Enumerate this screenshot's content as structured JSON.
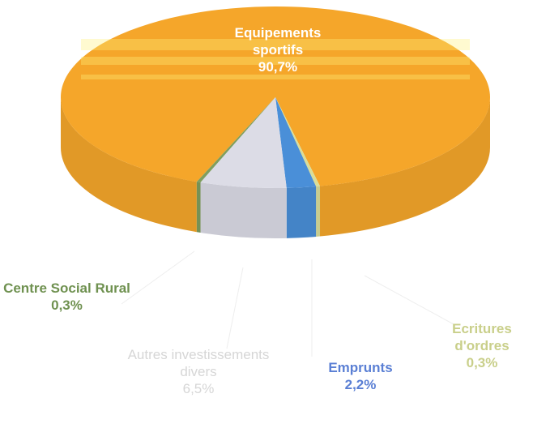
{
  "chart_data": {
    "type": "pie",
    "categories": [
      "Equipements sportifs",
      "Ecritures d'ordres",
      "Emprunts",
      "Autres investissements divers",
      "Centre Social Rural"
    ],
    "values": [
      90.7,
      0.3,
      2.2,
      6.5,
      0.3
    ],
    "value_labels": [
      "90,7%",
      "0,3%",
      "2,2%",
      "6,5%",
      "0,3%"
    ],
    "colors": [
      "#f5a62a",
      "#d9de9a",
      "#4a8fd8",
      "#dcdce6",
      "#7f9e5e"
    ],
    "label_colors": [
      "#ffffff",
      "#c9cf8a",
      "#5a7fd4",
      "#d6d6d6",
      "#6f9150"
    ]
  }
}
